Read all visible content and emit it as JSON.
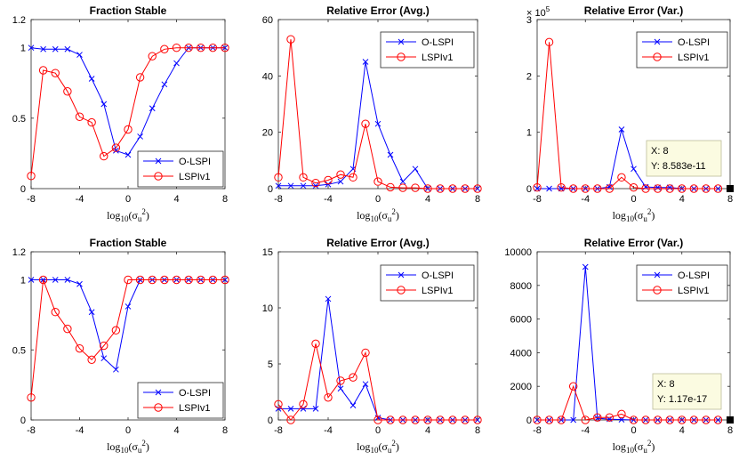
{
  "chart_data": [
    {
      "type": "line",
      "title": "Fraction Stable",
      "xlabel": "log10(σ_u²)",
      "xlim": [
        -8,
        8
      ],
      "ylim": [
        0,
        1.2
      ],
      "xticks": [
        "-8",
        "-4",
        "0",
        "4",
        "8"
      ],
      "yticks": [
        "0",
        "0.5",
        "1",
        "1.2"
      ],
      "legend_position": "bottom-right",
      "series": [
        {
          "name": "O-LSPI",
          "color": "#0000ff",
          "marker": "x",
          "x": [
            -8,
            -7,
            -6,
            -5,
            -4,
            -3,
            -2,
            -1,
            0,
            1,
            2,
            3,
            4,
            5,
            6,
            7,
            8
          ],
          "values": [
            1,
            0.99,
            0.99,
            0.99,
            0.95,
            0.78,
            0.6,
            0.27,
            0.24,
            0.37,
            0.57,
            0.74,
            0.89,
            1,
            1,
            1,
            1
          ]
        },
        {
          "name": "LSPIv1",
          "color": "#ff0000",
          "marker": "o",
          "x": [
            -8,
            -7,
            -6,
            -5,
            -4,
            -3,
            -2,
            -1,
            0,
            1,
            2,
            3,
            4,
            5,
            6,
            7,
            8
          ],
          "values": [
            0.09,
            0.84,
            0.82,
            0.69,
            0.51,
            0.47,
            0.23,
            0.29,
            0.42,
            0.79,
            0.94,
            0.99,
            1,
            1,
            1,
            1,
            1
          ]
        }
      ]
    },
    {
      "type": "line",
      "title": "Relative Error (Avg.)",
      "xlabel": "log10(σ_u²)",
      "xlim": [
        -8,
        8
      ],
      "ylim": [
        0,
        60
      ],
      "xticks": [
        "-8",
        "-4",
        "0",
        "4",
        "8"
      ],
      "yticks": [
        "0",
        "20",
        "40",
        "60"
      ],
      "legend_position": "top-right",
      "series": [
        {
          "name": "O-LSPI",
          "color": "#0000ff",
          "marker": "x",
          "x": [
            -8,
            -7,
            -6,
            -5,
            -4,
            -3,
            -2,
            -1,
            0,
            1,
            2,
            3,
            4,
            5,
            6,
            7,
            8
          ],
          "values": [
            1,
            1,
            1,
            1,
            1.5,
            2.5,
            7,
            45,
            23,
            12,
            2.5,
            7,
            0,
            0,
            0,
            0,
            0
          ]
        },
        {
          "name": "LSPIv1",
          "color": "#ff0000",
          "marker": "o",
          "x": [
            -8,
            -7,
            -6,
            -5,
            -4,
            -3,
            -2,
            -1,
            0,
            1,
            2,
            3,
            4,
            5,
            6,
            7,
            8
          ],
          "values": [
            4,
            53,
            4,
            2,
            3,
            5,
            4,
            23,
            2.5,
            0.5,
            0.3,
            0.3,
            0,
            0,
            0,
            0,
            0
          ]
        }
      ]
    },
    {
      "type": "line",
      "title": "Relative Error (Var.)",
      "xlabel": "log10(σ_u²)",
      "xlim": [
        -8,
        8
      ],
      "ylim": [
        0,
        3
      ],
      "y_multiplier_label": "× 10",
      "y_multiplier_exponent": "5",
      "xticks": [
        "-8",
        "-4",
        "0",
        "4",
        "8"
      ],
      "yticks": [
        "0",
        "1",
        "2",
        "3"
      ],
      "legend_position": "top-right",
      "datatip": {
        "x_label": "X: 8",
        "y_label": "Y: 8.583e-11",
        "x": 8,
        "y": 0
      },
      "series": [
        {
          "name": "O-LSPI",
          "color": "#0000ff",
          "marker": "x",
          "x": [
            -8,
            -7,
            -6,
            -5,
            -4,
            -3,
            -2,
            -1,
            0,
            1,
            2,
            3,
            4,
            5,
            6,
            7
          ],
          "values": [
            0,
            0,
            0,
            0,
            0,
            0,
            0.03,
            1.05,
            0.35,
            0.03,
            0.02,
            0.02,
            0,
            0,
            0,
            0
          ]
        },
        {
          "name": "LSPIv1",
          "color": "#ff0000",
          "marker": "o",
          "x": [
            -8,
            -7,
            -6,
            -5,
            -4,
            -3,
            -2,
            -1,
            0,
            1,
            2,
            3,
            4,
            5,
            6,
            7
          ],
          "values": [
            0.02,
            2.6,
            0.02,
            0,
            0,
            0,
            0,
            0.2,
            0.02,
            0,
            0,
            0,
            0,
            0,
            0,
            0
          ]
        }
      ]
    },
    {
      "type": "line",
      "title": "Fraction Stable",
      "xlabel": "log10(σ_u²)",
      "xlim": [
        -8,
        8
      ],
      "ylim": [
        0,
        1.2
      ],
      "xticks": [
        "-8",
        "-4",
        "0",
        "4",
        "8"
      ],
      "yticks": [
        "0",
        "0.5",
        "1",
        "1.2"
      ],
      "legend_position": "bottom-right",
      "series": [
        {
          "name": "O-LSPI",
          "color": "#0000ff",
          "marker": "x",
          "x": [
            -8,
            -7,
            -6,
            -5,
            -4,
            -3,
            -2,
            -1,
            0,
            1,
            2,
            3,
            4,
            5,
            6,
            7,
            8
          ],
          "values": [
            1,
            1,
            1,
            1,
            0.97,
            0.77,
            0.44,
            0.36,
            0.81,
            1,
            1,
            1,
            1,
            1,
            1,
            1,
            1
          ]
        },
        {
          "name": "LSPIv1",
          "color": "#ff0000",
          "marker": "o",
          "x": [
            -8,
            -7,
            -6,
            -5,
            -4,
            -3,
            -2,
            -1,
            0,
            1,
            2,
            3,
            4,
            5,
            6,
            7,
            8
          ],
          "values": [
            0.16,
            1,
            0.77,
            0.65,
            0.51,
            0.43,
            0.53,
            0.64,
            1,
            1,
            1,
            1,
            1,
            1,
            1,
            1,
            1
          ]
        }
      ]
    },
    {
      "type": "line",
      "title": "Relative Error (Avg.)",
      "xlabel": "log10(σ_u²)",
      "xlim": [
        -8,
        8
      ],
      "ylim": [
        0,
        15
      ],
      "xticks": [
        "-8",
        "-4",
        "0",
        "4",
        "8"
      ],
      "yticks": [
        "0",
        "5",
        "10",
        "15"
      ],
      "legend_position": "top-right",
      "series": [
        {
          "name": "O-LSPI",
          "color": "#0000ff",
          "marker": "x",
          "x": [
            -8,
            -7,
            -6,
            -5,
            -4,
            -3,
            -2,
            -1,
            0,
            1,
            2,
            3,
            4,
            5,
            6,
            7,
            8
          ],
          "values": [
            1,
            1,
            1,
            1,
            10.8,
            2.8,
            1.3,
            3.2,
            0.2,
            0,
            0,
            0,
            0,
            0,
            0,
            0,
            0
          ]
        },
        {
          "name": "LSPIv1",
          "color": "#ff0000",
          "marker": "o",
          "x": [
            -8,
            -7,
            -6,
            -5,
            -4,
            -3,
            -2,
            -1,
            0,
            1,
            2,
            3,
            4,
            5,
            6,
            7,
            8
          ],
          "values": [
            1.4,
            0,
            1.4,
            6.8,
            2,
            3.5,
            3.8,
            6,
            0,
            0,
            0,
            0,
            0,
            0,
            0,
            0,
            0
          ]
        }
      ]
    },
    {
      "type": "line",
      "title": "Relative Error (Var.)",
      "xlabel": "log10(σ_u²)",
      "xlim": [
        -8,
        8
      ],
      "ylim": [
        0,
        10000
      ],
      "xticks": [
        "-8",
        "-4",
        "0",
        "4",
        "8"
      ],
      "yticks": [
        "0",
        "2000",
        "4000",
        "6000",
        "8000",
        "10000"
      ],
      "legend_position": "top-right",
      "datatip": {
        "x_label": "X: 8",
        "y_label": "Y: 1.17e-17",
        "x": 8,
        "y": 0
      },
      "series": [
        {
          "name": "O-LSPI",
          "color": "#0000ff",
          "marker": "x",
          "x": [
            -8,
            -7,
            -6,
            -5,
            -4,
            -3,
            -2,
            -1,
            0,
            1,
            2,
            3,
            4,
            5,
            6,
            7
          ],
          "values": [
            0,
            0,
            0,
            0,
            9100,
            100,
            50,
            20,
            0,
            0,
            0,
            0,
            0,
            0,
            0,
            0
          ]
        },
        {
          "name": "LSPIv1",
          "color": "#ff0000",
          "marker": "o",
          "x": [
            -8,
            -7,
            -6,
            -5,
            -4,
            -3,
            -2,
            -1,
            0,
            1,
            2,
            3,
            4,
            5,
            6,
            7
          ],
          "values": [
            0,
            0,
            0,
            2000,
            0,
            150,
            150,
            350,
            0,
            0,
            0,
            0,
            0,
            0,
            0,
            0
          ]
        }
      ]
    }
  ]
}
